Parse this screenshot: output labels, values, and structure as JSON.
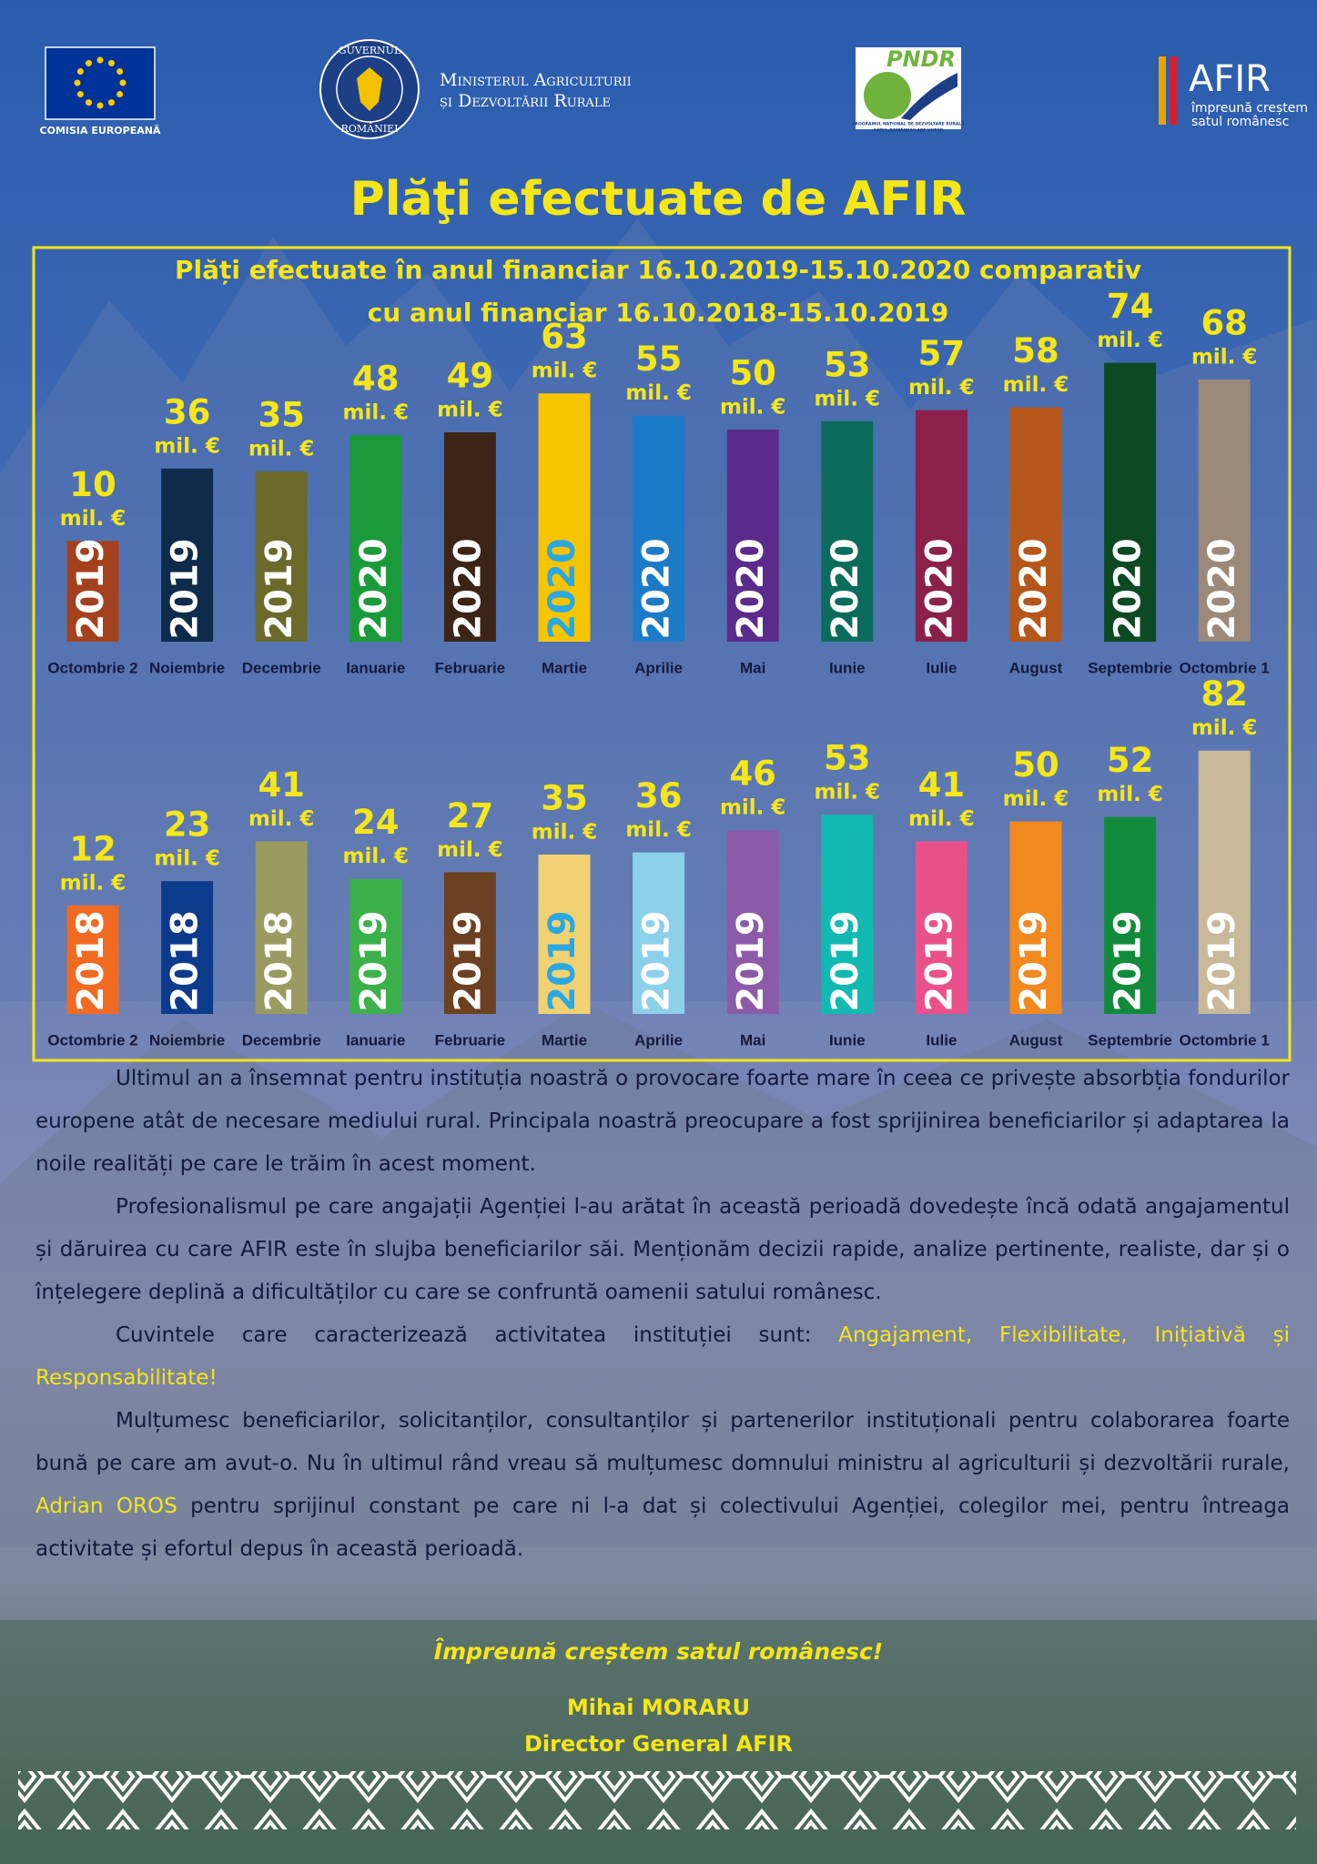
{
  "header": {
    "eu_caption": "COMISIA EUROPEANĂ",
    "gov_ring_top": "GUVERNUL",
    "gov_ring_bottom": "ROMÂNIEI",
    "ministry_lines": [
      "Ministerul Agriculturii",
      "și Dezvoltării Rurale"
    ],
    "pndr_logo": "PNDR",
    "pndr_caption_lines": [
      "PROGRAMUL NAȚIONAL DE DEZVOLTARE RURALĂ",
      "SATUL ROMÂNESC ARE VIITOR"
    ],
    "afir_logo": "AFIR",
    "afir_tagline_lines": [
      "împreună creștem",
      "satul românesc"
    ]
  },
  "title": "Plăţi efectuate de AFIR",
  "charts_title": [
    "Plăți efectuate în anul financiar 16.10.2019-15.10.2020 comparativ",
    "cu anul financiar 16.10.2018-15.10.2019"
  ],
  "chart_data": [
    {
      "type": "bar",
      "unit": "mil. €",
      "categories": [
        "Octombrie 2",
        "Noiembrie",
        "Decembrie",
        "Ianuarie",
        "Februarie",
        "Martie",
        "Aprilie",
        "Mai",
        "Iunie",
        "Iulie",
        "August",
        "Septembrie",
        "Octombrie 1"
      ],
      "values": [
        10,
        36,
        35,
        48,
        49,
        63,
        55,
        50,
        53,
        57,
        58,
        74,
        68
      ],
      "bar_labels": [
        "2019",
        "2019",
        "2019",
        "2020",
        "2020",
        "2020",
        "2020",
        "2020",
        "2020",
        "2020",
        "2020",
        "2020",
        "2020"
      ],
      "colors": [
        "#a3411f",
        "#0e2b4b",
        "#6c6a2b",
        "#1b9a3c",
        "#3c2516",
        "#f7c400",
        "#1b7bc9",
        "#5b2b8b",
        "#0c6c5b",
        "#8b204b",
        "#b5571b",
        "#0c4a23",
        "#9b8979"
      ],
      "label_colors": [
        "#ffffff",
        "#ffffff",
        "#ffffff",
        "#ffffff",
        "#ffffff",
        "#2aa8e0",
        "#ffffff",
        "#ffffff",
        "#ffffff",
        "#ffffff",
        "#ffffff",
        "#ffffff",
        "#ffffff"
      ]
    },
    {
      "type": "bar",
      "unit": "mil. €",
      "categories": [
        "Octombrie 2",
        "Noiembrie",
        "Decembrie",
        "Ianuarie",
        "Februarie",
        "Martie",
        "Aprilie",
        "Mai",
        "Iunie",
        "Iulie",
        "August",
        "Septembrie",
        "Octombrie 1"
      ],
      "values": [
        12,
        23,
        41,
        24,
        27,
        35,
        36,
        46,
        53,
        41,
        50,
        52,
        82
      ],
      "bar_labels": [
        "2018",
        "2018",
        "2018",
        "2019",
        "2019",
        "2019",
        "2019",
        "2019",
        "2019",
        "2019",
        "2019",
        "2019",
        "2019"
      ],
      "colors": [
        "#f06b21",
        "#0c3b8b",
        "#9b9a61",
        "#3cb04b",
        "#6c4121",
        "#f2d173",
        "#8cd1e9",
        "#8b5ba9",
        "#11b9b1",
        "#e9518b",
        "#f18921",
        "#118b3b",
        "#c9b999"
      ],
      "label_colors": [
        "#ffffff",
        "#ffffff",
        "#ffffff",
        "#ffffff",
        "#ffffff",
        "#2aa8e0",
        "#ffffff",
        "#ffffff",
        "#ffffff",
        "#ffffff",
        "#ffffff",
        "#ffffff",
        "#ffffff"
      ]
    }
  ],
  "paragraphs": [
    [
      "Ultimul an a însemnat pentru instituția noastră o provocare foarte mare în ceea ce privește absorbția fondurilor europene atât de necesare mediului rural. Principala noastră preocupare a fost sprijinirea beneficiarilor și adaptarea la noile realități pe care le trăim în acest moment."
    ],
    [
      "Profesionalismul pe care angajații Agenției l-au arătat în această perioadă dovedește încă odată angajamentul și dăruirea cu care AFIR este în slujba beneficiarilor săi. Menționăm decizii rapide, analize pertinente, realiste, dar și o înțelegere deplină a dificultăților cu care se confruntă oamenii satului românesc."
    ],
    [
      "Cuvintele care caracterizează activitatea instituției sunt: ",
      "Angajament, Flexibilitate, Inițiativă și Responsabilitate!"
    ],
    [
      "Mulțumesc beneficiarilor, solicitanților, consultanților și partenerilor instituționali pentru colaborarea foarte bună pe care am avut-o. Nu în ultimul rând vreau să mulțumesc domnului ministru al agriculturii și dezvoltării rurale, ",
      "Adrian OROS",
      " pentru sprijinul constant pe care ni l-a dat și colectivului Agenției, colegilor mei, pentru întreaga activitate și efortul depus în această perioadă."
    ]
  ],
  "closing": "Împreună creștem satul românesc!",
  "signature": {
    "name": "Mihai MORARU",
    "role": "Director General AFIR"
  }
}
